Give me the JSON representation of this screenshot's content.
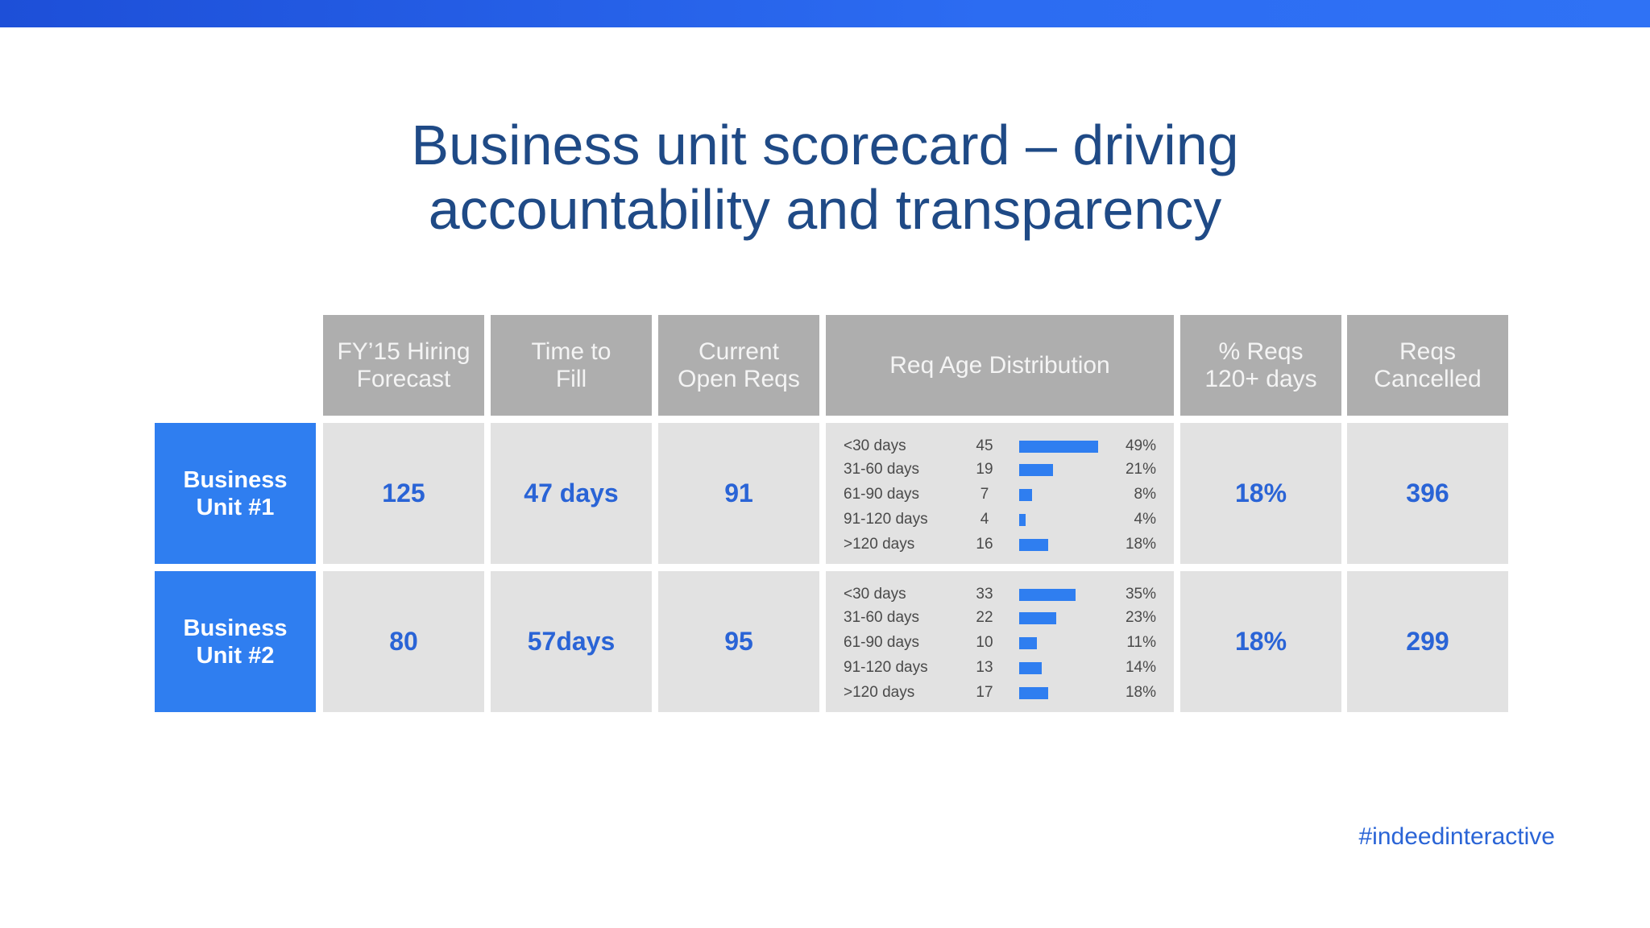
{
  "title": {
    "line1": "Business unit scorecard – driving",
    "line2": "accountability and transparency"
  },
  "columns": [
    "FY’15 Hiring\nForecast",
    "Time to\nFill",
    "Current\nOpen Reqs",
    "Req Age Distribution",
    "% Reqs\n120+ days",
    "Reqs\nCancelled"
  ],
  "rows": [
    {
      "unit": "Business\nUnit #1",
      "forecast": "125",
      "time_to_fill": "47 days",
      "open_reqs": "91",
      "distribution": [
        {
          "label": "<30 days",
          "count": "45",
          "pct": "49%",
          "share": 0.49
        },
        {
          "label": "31-60 days",
          "count": "19",
          "pct": "21%",
          "share": 0.21
        },
        {
          "label": "61-90 days",
          "count": "7",
          "pct": "8%",
          "share": 0.08
        },
        {
          "label": "91-120 days",
          "count": "4",
          "pct": "4%",
          "share": 0.04
        },
        {
          "label": ">120 days",
          "count": "16",
          "pct": "18%",
          "share": 0.18
        }
      ],
      "pct_120": "18%",
      "cancelled": "396"
    },
    {
      "unit": "Business\nUnit #2",
      "forecast": "80",
      "time_to_fill": "57days",
      "open_reqs": "95",
      "distribution": [
        {
          "label": "<30 days",
          "count": "33",
          "pct": "35%",
          "share": 0.35
        },
        {
          "label": "31-60 days",
          "count": "22",
          "pct": "23%",
          "share": 0.23
        },
        {
          "label": "61-90 days",
          "count": "10",
          "pct": "11%",
          "share": 0.11
        },
        {
          "label": "91-120 days",
          "count": "13",
          "pct": "14%",
          "share": 0.14
        },
        {
          "label": ">120 days",
          "count": "17",
          "pct": "18%",
          "share": 0.18
        }
      ],
      "pct_120": "18%",
      "cancelled": "299"
    }
  ],
  "footer": {
    "hashtag": "#indeedinteractive"
  },
  "colors": {
    "accent": "#2f7ef0",
    "header_gray": "#aeaeae",
    "cell_gray": "#e2e2e2",
    "title": "#1f4a86"
  }
}
